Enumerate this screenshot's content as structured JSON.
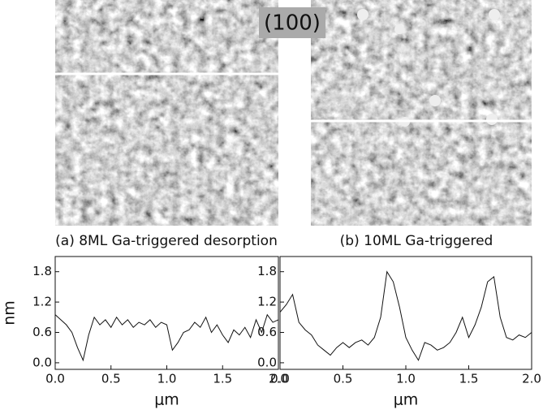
{
  "label": "(100)",
  "captions": [
    "(a) 8ML Ga-triggered desorption",
    "(b) 10ML Ga-triggered"
  ],
  "chart_data": [
    {
      "type": "line",
      "ylabel": "nm",
      "xlabel": "μm",
      "x": [
        0,
        0.05,
        0.1,
        0.15,
        0.2,
        0.25,
        0.3,
        0.35,
        0.4,
        0.45,
        0.5,
        0.55,
        0.6,
        0.65,
        0.7,
        0.75,
        0.8,
        0.85,
        0.9,
        0.95,
        1.0,
        1.05,
        1.1,
        1.15,
        1.2,
        1.25,
        1.3,
        1.35,
        1.4,
        1.45,
        1.5,
        1.55,
        1.6,
        1.65,
        1.7,
        1.75,
        1.8,
        1.85,
        1.9,
        1.95,
        2.0
      ],
      "series": [
        {
          "color": "#111111",
          "values": [
            0.95,
            0.85,
            0.75,
            0.6,
            0.3,
            0.05,
            0.55,
            0.9,
            0.75,
            0.85,
            0.7,
            0.9,
            0.75,
            0.85,
            0.7,
            0.8,
            0.75,
            0.85,
            0.7,
            0.8,
            0.75,
            0.25,
            0.4,
            0.6,
            0.65,
            0.8,
            0.7,
            0.9,
            0.6,
            0.75,
            0.55,
            0.4,
            0.65,
            0.55,
            0.7,
            0.5,
            0.85,
            0.6,
            0.95,
            0.8,
            0.85
          ]
        }
      ],
      "xlim": [
        0,
        2.0
      ],
      "ylim": [
        -0.13,
        2.1
      ],
      "xticks": [
        {
          "value": 0,
          "label": "0.0"
        },
        0.5,
        {
          "value": 1,
          "label": "1.0"
        },
        1.5,
        {
          "value": 2,
          "label": "2.0"
        }
      ],
      "yticks": [
        {
          "value": 0,
          "label": "0.0"
        },
        0.6,
        1.2,
        1.8
      ]
    },
    {
      "type": "line",
      "xlabel": "μm",
      "x": [
        0,
        0.05,
        0.1,
        0.15,
        0.2,
        0.25,
        0.3,
        0.35,
        0.4,
        0.45,
        0.5,
        0.55,
        0.6,
        0.65,
        0.7,
        0.75,
        0.8,
        0.85,
        0.9,
        0.95,
        1.0,
        1.05,
        1.1,
        1.15,
        1.2,
        1.25,
        1.3,
        1.35,
        1.4,
        1.45,
        1.5,
        1.55,
        1.6,
        1.65,
        1.7,
        1.75,
        1.8,
        1.85,
        1.9,
        1.95,
        2.0
      ],
      "series": [
        {
          "color": "#111111",
          "values": [
            1.0,
            1.15,
            1.35,
            0.8,
            0.65,
            0.55,
            0.35,
            0.25,
            0.15,
            0.3,
            0.4,
            0.3,
            0.4,
            0.45,
            0.35,
            0.5,
            0.9,
            1.8,
            1.6,
            1.1,
            0.5,
            0.25,
            0.05,
            0.4,
            0.35,
            0.25,
            0.3,
            0.4,
            0.6,
            0.9,
            0.5,
            0.75,
            1.1,
            1.6,
            1.7,
            0.9,
            0.5,
            0.45,
            0.55,
            0.5,
            0.6
          ]
        }
      ],
      "xlim": [
        0,
        2.0
      ],
      "ylim": [
        -0.13,
        2.1
      ],
      "xticks": [
        {
          "value": 0,
          "label": "0.0"
        },
        0.5,
        {
          "value": 1,
          "label": "1.0"
        },
        1.5,
        {
          "value": 2,
          "label": "2.0"
        }
      ],
      "yticks": [
        {
          "value": 0,
          "label": "0.0"
        },
        0.6,
        1.2,
        1.8
      ]
    }
  ]
}
